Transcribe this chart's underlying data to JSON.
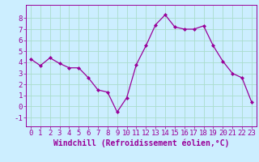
{
  "hours": [
    0,
    1,
    2,
    3,
    4,
    5,
    6,
    7,
    8,
    9,
    10,
    11,
    12,
    13,
    14,
    15,
    16,
    17,
    18,
    19,
    20,
    21,
    22,
    23
  ],
  "values": [
    4.3,
    3.7,
    4.4,
    3.9,
    3.5,
    3.5,
    2.6,
    1.5,
    1.3,
    -0.5,
    0.8,
    3.8,
    5.5,
    7.4,
    8.3,
    7.2,
    7.0,
    7.0,
    7.3,
    5.5,
    4.1,
    3.0,
    2.6,
    0.4
  ],
  "line_color": "#990099",
  "marker": "D",
  "marker_size": 2,
  "bg_color": "#cceeff",
  "grid_color": "#aaddcc",
  "xlabel": "Windchill (Refroidissement éolien,°C)",
  "xlabel_fontsize": 7,
  "ylabel_ticks": [
    -1,
    0,
    1,
    2,
    3,
    4,
    5,
    6,
    7,
    8
  ],
  "xlim": [
    -0.5,
    23.5
  ],
  "ylim": [
    -1.8,
    9.2
  ],
  "tick_fontsize": 6.5,
  "spine_color": "#990099"
}
